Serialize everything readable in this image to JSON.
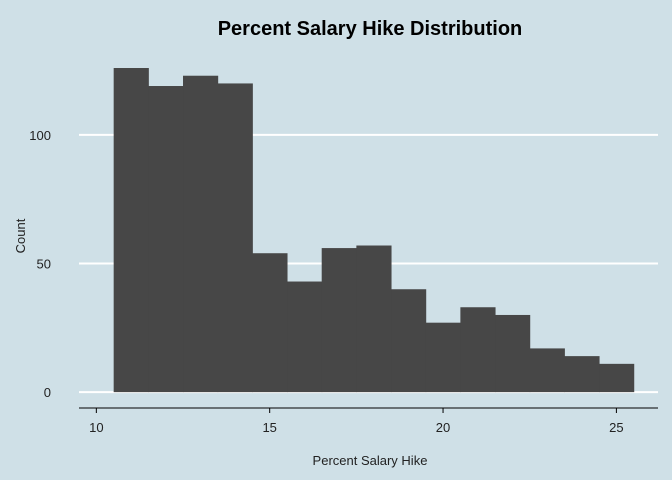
{
  "chart_data": {
    "type": "bar",
    "title": "Percent Salary Hike Distribution",
    "xlabel": "Percent Salary Hike",
    "ylabel": "Count",
    "bins": [
      {
        "x0": 10.5,
        "x1": 11.5,
        "count": 126
      },
      {
        "x0": 11.5,
        "x1": 12.5,
        "count": 119
      },
      {
        "x0": 12.5,
        "x1": 13.5,
        "count": 123
      },
      {
        "x0": 13.5,
        "x1": 14.5,
        "count": 120
      },
      {
        "x0": 14.5,
        "x1": 15.5,
        "count": 54
      },
      {
        "x0": 15.5,
        "x1": 16.5,
        "count": 43
      },
      {
        "x0": 16.5,
        "x1": 17.5,
        "count": 56
      },
      {
        "x0": 17.5,
        "x1": 18.5,
        "count": 57
      },
      {
        "x0": 18.5,
        "x1": 19.5,
        "count": 40
      },
      {
        "x0": 19.5,
        "x1": 20.5,
        "count": 27
      },
      {
        "x0": 20.5,
        "x1": 21.5,
        "count": 33
      },
      {
        "x0": 21.5,
        "x1": 22.5,
        "count": 30
      },
      {
        "x0": 22.5,
        "x1": 23.5,
        "count": 17
      },
      {
        "x0": 23.5,
        "x1": 24.5,
        "count": 14
      },
      {
        "x0": 24.5,
        "x1": 25.5,
        "count": 11
      }
    ],
    "xlim": [
      9.5,
      26.2
    ],
    "ylim": [
      -5,
      133
    ],
    "x_ticks": [
      "10",
      "15",
      "20",
      "25"
    ],
    "y_ticks": [
      "0",
      "50",
      "100"
    ],
    "grid": "horizontal",
    "colors": {
      "background": "#cfe0e7",
      "bar": "#474747",
      "grid": "#ffffff",
      "axis": "#000000"
    }
  }
}
